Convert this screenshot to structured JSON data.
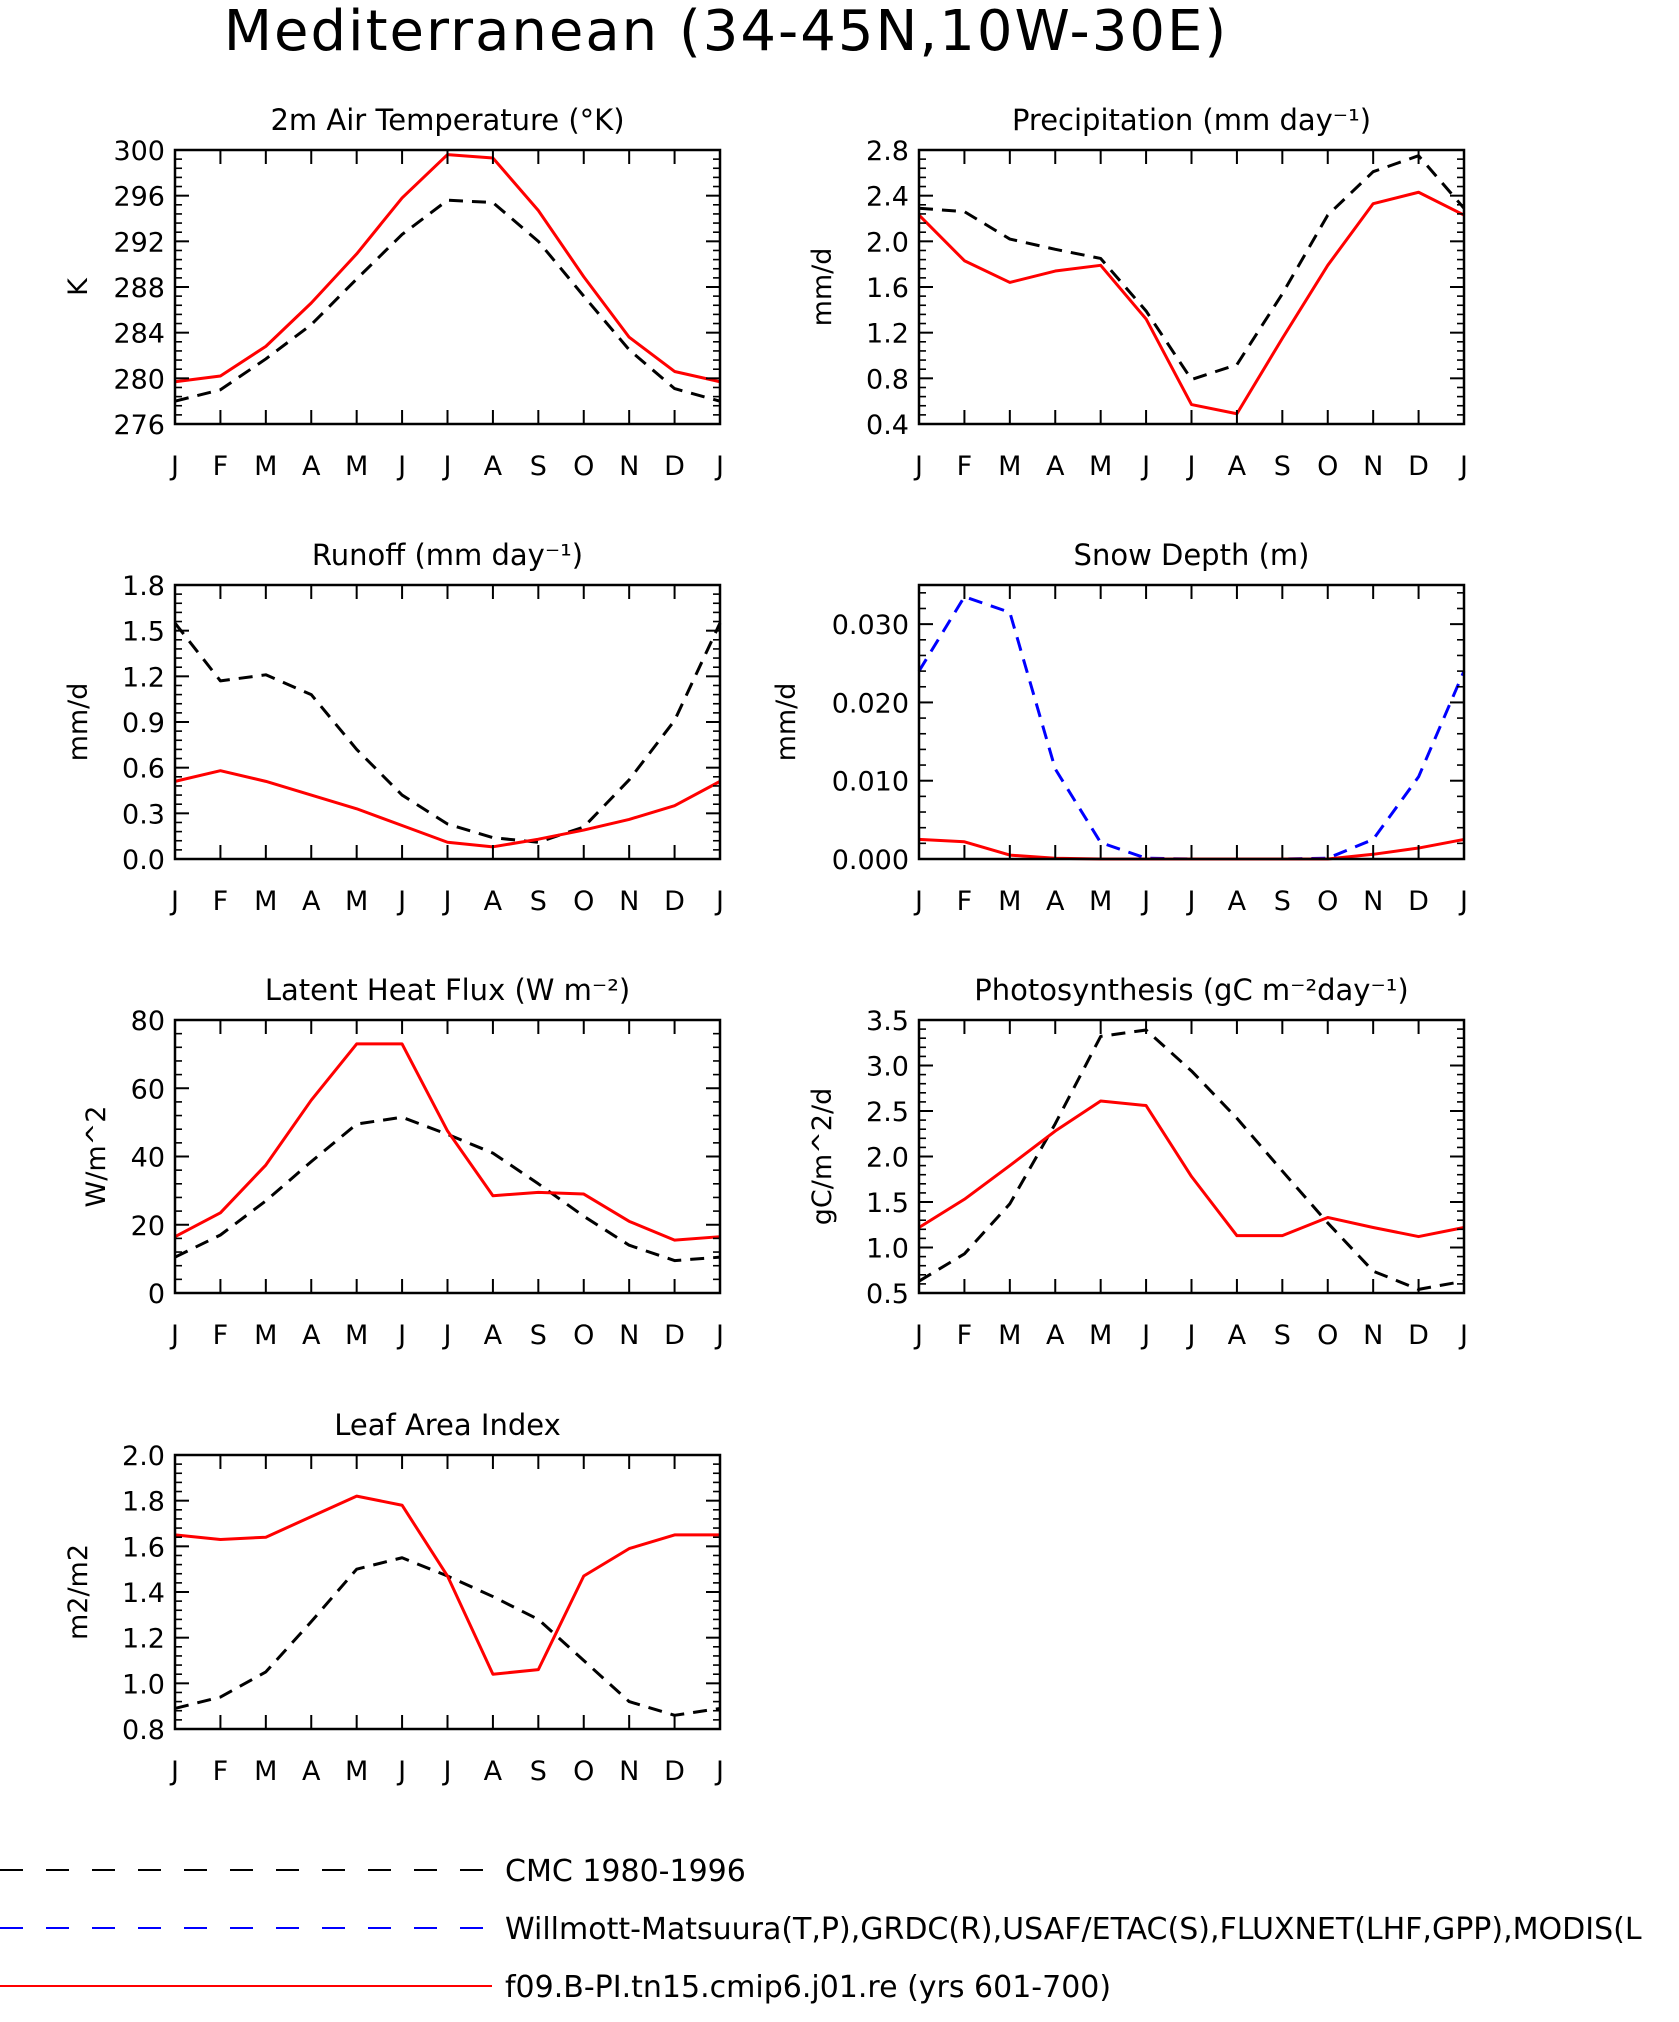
{
  "figure": {
    "title": "Mediterranean (34-45N,10W-30E)"
  },
  "chart_data": [
    {
      "type": "line",
      "title": "2m Air Temperature (°K)",
      "ylabel": "K",
      "categories": [
        "J",
        "F",
        "M",
        "A",
        "M",
        "J",
        "J",
        "A",
        "S",
        "O",
        "N",
        "D",
        "J"
      ],
      "ylim": [
        276,
        300
      ],
      "yticks": [
        276,
        280,
        284,
        288,
        292,
        296,
        300
      ],
      "yticklabels": [
        "276",
        "280",
        "284",
        "288",
        "292",
        "296",
        "300"
      ],
      "series": [
        {
          "style": "cmc",
          "values": [
            278.0,
            279.0,
            281.7,
            284.7,
            288.7,
            292.6,
            295.6,
            295.4,
            292.0,
            287.2,
            282.5,
            279.1,
            278.0
          ]
        },
        {
          "style": "model",
          "values": [
            279.7,
            280.2,
            282.8,
            286.6,
            290.9,
            295.8,
            299.6,
            299.3,
            294.7,
            288.9,
            283.6,
            280.6,
            279.7
          ]
        }
      ]
    },
    {
      "type": "line",
      "title": "Precipitation (mm day⁻¹)",
      "ylabel": "mm/d",
      "categories": [
        "J",
        "F",
        "M",
        "A",
        "M",
        "J",
        "J",
        "A",
        "S",
        "O",
        "N",
        "D",
        "J"
      ],
      "ylim": [
        0.4,
        2.8
      ],
      "yticks": [
        0.4,
        0.8,
        1.2,
        1.6,
        2.0,
        2.4,
        2.8
      ],
      "yticklabels": [
        "0.4",
        "0.8",
        "1.2",
        "1.6",
        "2.0",
        "2.4",
        "2.8"
      ],
      "series": [
        {
          "style": "cmc",
          "values": [
            2.29,
            2.26,
            2.02,
            1.93,
            1.85,
            1.39,
            0.79,
            0.92,
            1.54,
            2.23,
            2.61,
            2.75,
            2.29
          ]
        },
        {
          "style": "model",
          "values": [
            2.23,
            1.83,
            1.64,
            1.74,
            1.79,
            1.32,
            0.57,
            0.49,
            1.15,
            1.79,
            2.33,
            2.43,
            2.23
          ]
        }
      ]
    },
    {
      "type": "line",
      "title": "Runoff (mm day⁻¹)",
      "ylabel": "mm/d",
      "categories": [
        "J",
        "F",
        "M",
        "A",
        "M",
        "J",
        "J",
        "A",
        "S",
        "O",
        "N",
        "D",
        "J"
      ],
      "ylim": [
        0.0,
        1.8
      ],
      "yticks": [
        0.0,
        0.3,
        0.6,
        0.9,
        1.2,
        1.5,
        1.8
      ],
      "yticklabels": [
        "0.0",
        "0.3",
        "0.6",
        "0.9",
        "1.2",
        "1.5",
        "1.8"
      ],
      "series": [
        {
          "style": "cmc",
          "values": [
            1.55,
            1.17,
            1.21,
            1.08,
            0.72,
            0.42,
            0.23,
            0.14,
            0.11,
            0.21,
            0.52,
            0.91,
            1.55
          ]
        },
        {
          "style": "model",
          "values": [
            0.51,
            0.58,
            0.51,
            0.42,
            0.33,
            0.22,
            0.11,
            0.08,
            0.13,
            0.19,
            0.26,
            0.35,
            0.51
          ]
        }
      ]
    },
    {
      "type": "line",
      "title": "Snow Depth (m)",
      "ylabel": "mm/d",
      "categories": [
        "J",
        "F",
        "M",
        "A",
        "M",
        "J",
        "J",
        "A",
        "S",
        "O",
        "N",
        "D",
        "J"
      ],
      "ylim": [
        0.0,
        0.035
      ],
      "yticks": [
        0.0,
        0.01,
        0.02,
        0.03
      ],
      "yticklabels": [
        "0.000",
        "0.010",
        "0.020",
        "0.030"
      ],
      "series": [
        {
          "style": "obs",
          "values": [
            0.024,
            0.0335,
            0.0315,
            0.0115,
            0.0021,
            0.0001,
            0.0,
            0.0,
            0.0,
            0.0001,
            0.0025,
            0.0105,
            0.024
          ]
        },
        {
          "style": "model",
          "values": [
            0.0025,
            0.0022,
            0.0005,
            0.0001,
            0.0,
            0.0,
            0.0,
            0.0,
            0.0,
            0.0,
            0.0006,
            0.0014,
            0.0025
          ]
        }
      ]
    },
    {
      "type": "line",
      "title": "Latent Heat Flux (W m⁻²)",
      "ylabel": "W/m^2",
      "categories": [
        "J",
        "F",
        "M",
        "A",
        "M",
        "J",
        "J",
        "A",
        "S",
        "O",
        "N",
        "D",
        "J"
      ],
      "ylim": [
        0,
        80
      ],
      "yticks": [
        0,
        20,
        40,
        60,
        80
      ],
      "yticklabels": [
        "0",
        "20",
        "40",
        "60",
        "80"
      ],
      "series": [
        {
          "style": "cmc",
          "values": [
            10.5,
            17.0,
            27.0,
            38.5,
            49.5,
            51.5,
            46.5,
            41.0,
            32.0,
            22.5,
            14.0,
            9.5,
            10.5
          ]
        },
        {
          "style": "model",
          "values": [
            16.5,
            23.5,
            37.5,
            56.5,
            73.0,
            73.0,
            47.5,
            28.5,
            29.5,
            29.0,
            21.0,
            15.5,
            16.5
          ]
        }
      ]
    },
    {
      "type": "line",
      "title": "Photosynthesis (gC m⁻²day⁻¹)",
      "ylabel": "gC/m^2/d",
      "categories": [
        "J",
        "F",
        "M",
        "A",
        "M",
        "J",
        "J",
        "A",
        "S",
        "O",
        "N",
        "D",
        "J"
      ],
      "ylim": [
        0.5,
        3.5
      ],
      "yticks": [
        0.5,
        1.0,
        1.5,
        2.0,
        2.5,
        3.0,
        3.5
      ],
      "yticklabels": [
        "0.5",
        "1.0",
        "1.5",
        "2.0",
        "2.5",
        "3.0",
        "3.5"
      ],
      "series": [
        {
          "style": "cmc",
          "values": [
            0.63,
            0.93,
            1.48,
            2.36,
            3.32,
            3.39,
            2.94,
            2.42,
            1.84,
            1.27,
            0.74,
            0.54,
            0.63
          ]
        },
        {
          "style": "model",
          "values": [
            1.22,
            1.53,
            1.9,
            2.28,
            2.61,
            2.56,
            1.78,
            1.13,
            1.13,
            1.33,
            1.22,
            1.12,
            1.22
          ]
        }
      ]
    },
    {
      "type": "line",
      "title": "Leaf Area Index",
      "ylabel": "m2/m2",
      "categories": [
        "J",
        "F",
        "M",
        "A",
        "M",
        "J",
        "J",
        "A",
        "S",
        "O",
        "N",
        "D",
        "J"
      ],
      "ylim": [
        0.8,
        2.0
      ],
      "yticks": [
        0.8,
        1.0,
        1.2,
        1.4,
        1.6,
        1.8,
        2.0
      ],
      "yticklabels": [
        "0.8",
        "1.0",
        "1.2",
        "1.4",
        "1.6",
        "1.8",
        "2.0"
      ],
      "series": [
        {
          "style": "cmc",
          "values": [
            0.89,
            0.94,
            1.05,
            1.27,
            1.5,
            1.55,
            1.47,
            1.38,
            1.28,
            1.1,
            0.92,
            0.86,
            0.89
          ]
        },
        {
          "style": "model",
          "values": [
            1.65,
            1.63,
            1.64,
            1.73,
            1.82,
            1.78,
            1.47,
            1.04,
            1.06,
            1.47,
            1.59,
            1.65,
            1.65
          ]
        }
      ]
    }
  ],
  "legend": [
    {
      "style": "cmc",
      "label": "CMC 1980-1996",
      "color": "#000000",
      "dash": true
    },
    {
      "style": "obs",
      "label": "Willmott-Matsuura(T,P),GRDC(R),USAF/ETAC(S),FLUXNET(LHF,GPP),MODIS(L",
      "color": "#0000ff",
      "dash": true
    },
    {
      "style": "model",
      "label": "f09.B-PI.tn15.cmip6.j01.re (yrs 601-700)",
      "color": "#ff0000",
      "dash": false
    }
  ],
  "colors": {
    "cmc": "#000000",
    "obs": "#0000ff",
    "model": "#ff0000"
  }
}
